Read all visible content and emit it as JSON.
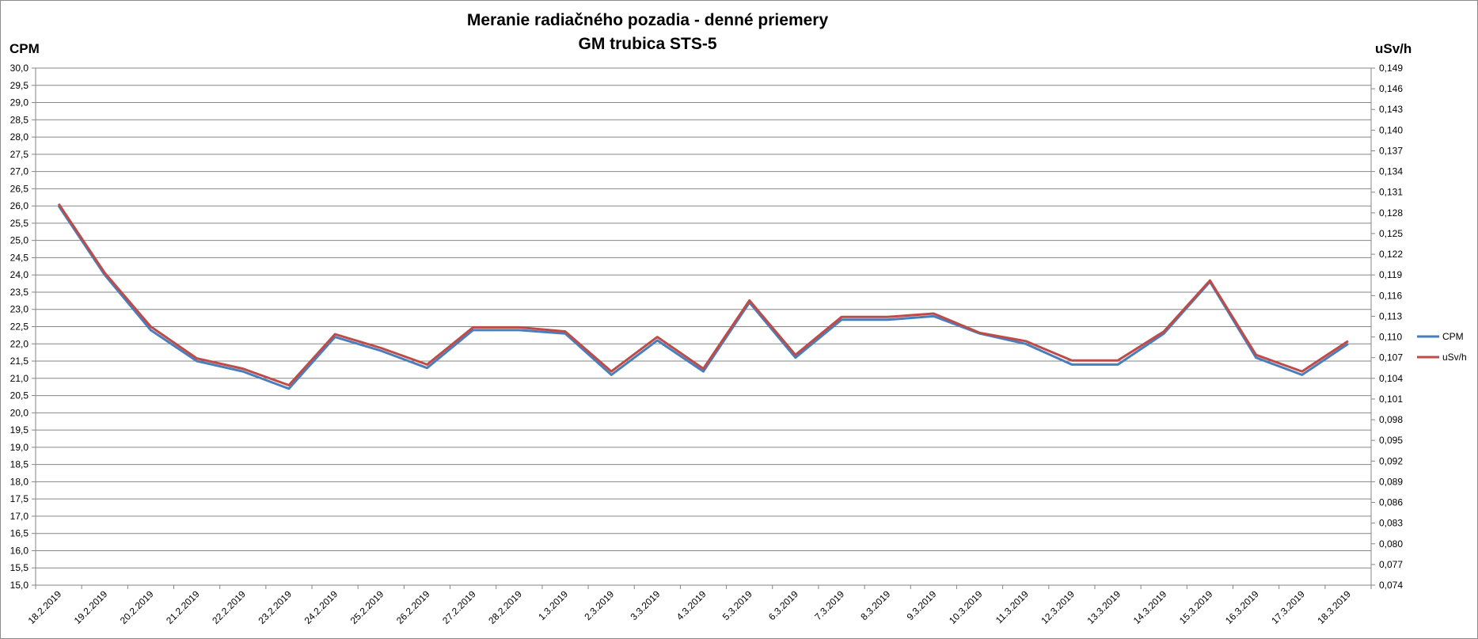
{
  "chart_data": {
    "type": "line",
    "title": "Meranie radiačného pozadia - denné priemery",
    "subtitle": "GM trubica STS-5",
    "ylabel": "CPM",
    "y2label": "uSv/h",
    "ylim": [
      15.0,
      30.0
    ],
    "y2lim": [
      0.074,
      0.149
    ],
    "grid": true,
    "legend_position": "right",
    "colors": {
      "CPM": "#4a7ebb",
      "uSv/h": "#be4b48",
      "grid": "#868686",
      "axis": "#868686"
    },
    "y_ticks": [
      "15,0",
      "15,5",
      "16,0",
      "16,5",
      "17,0",
      "17,5",
      "18,0",
      "18,5",
      "19,0",
      "19,5",
      "20,0",
      "20,5",
      "21,0",
      "21,5",
      "22,0",
      "22,5",
      "23,0",
      "23,5",
      "24,0",
      "24,5",
      "25,0",
      "25,5",
      "26,0",
      "26,5",
      "27,0",
      "27,5",
      "28,0",
      "28,5",
      "29,0",
      "29,5",
      "30,0"
    ],
    "y2_ticks": [
      "0,074",
      "0,077",
      "0,080",
      "0,083",
      "0,086",
      "0,089",
      "0,092",
      "0,095",
      "0,098",
      "0,101",
      "0,104",
      "0,107",
      "0,110",
      "0,113",
      "0,116",
      "0,119",
      "0,122",
      "0,125",
      "0,128",
      "0,131",
      "0,134",
      "0,137",
      "0,140",
      "0,143",
      "0,146",
      "0,149"
    ],
    "categories": [
      "18.2.2019",
      "19.2.2019",
      "20.2.2019",
      "21.2.2019",
      "22.2.2019",
      "23.2.2019",
      "24.2.2019",
      "25.2.2019",
      "26.2.2019",
      "27.2.2019",
      "28.2.2019",
      "1.3.2019",
      "2.3.2019",
      "3.3.2019",
      "4.3.2019",
      "5.3.2019",
      "6.3.2019",
      "7.3.2019",
      "8.3.2019",
      "9.3.2019",
      "10.3.2019",
      "11.3.2019",
      "12.3.2019",
      "13.3.2019",
      "14.3.2019",
      "15.3.2019",
      "16.3.2019",
      "17.3.2019",
      "18.3.2019"
    ],
    "series": [
      {
        "name": "CPM",
        "axis": "left",
        "values": [
          26.0,
          24.0,
          22.4,
          21.5,
          21.2,
          20.7,
          22.2,
          21.8,
          21.3,
          22.4,
          22.4,
          22.3,
          21.1,
          22.1,
          21.2,
          23.2,
          21.6,
          22.7,
          22.7,
          22.8,
          22.3,
          22.0,
          21.4,
          21.4,
          22.3,
          23.8,
          21.6,
          21.1,
          22.0
        ]
      },
      {
        "name": "uSv/h",
        "axis": "right",
        "values": [
          0.1293,
          0.1193,
          0.1115,
          0.1069,
          0.1054,
          0.103,
          0.1104,
          0.1084,
          0.106,
          0.1114,
          0.1114,
          0.1108,
          0.105,
          0.11,
          0.1054,
          0.1153,
          0.1074,
          0.1129,
          0.1129,
          0.1134,
          0.1106,
          0.1094,
          0.1066,
          0.1066,
          0.1108,
          0.1182,
          0.1074,
          0.105,
          0.1094
        ]
      }
    ]
  }
}
